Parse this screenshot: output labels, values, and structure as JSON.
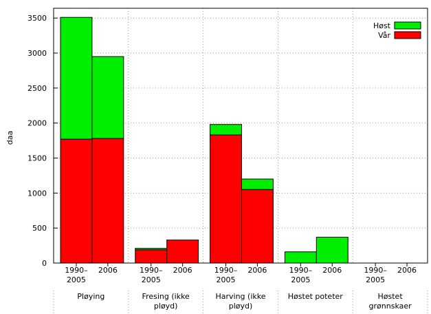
{
  "chart_data": {
    "type": "stacked_bar",
    "y_label": "daa",
    "categories": [
      "1990–\n2005",
      "2006",
      "1990–\n2005",
      "2006",
      "1990–\n2005",
      "2006",
      "1990–\n2005",
      "2006",
      "1990–\n2005",
      "2006"
    ],
    "groups": [
      "Pløying",
      "Fresing (ikke\npløyd)",
      "Harving (ikke\npløyd)",
      "Høstet poteter",
      "Høstet\ngrønnskaer"
    ],
    "series": [
      {
        "name": "Vår",
        "color": "#ff0000",
        "values": [
          1770,
          1780,
          190,
          330,
          1830,
          1050,
          0,
          0,
          0,
          0
        ]
      },
      {
        "name": "Høst",
        "color": "#00ee00",
        "values": [
          1740,
          1170,
          20,
          0,
          150,
          150,
          160,
          370,
          0,
          0
        ]
      }
    ],
    "ylim": [
      0,
      3640
    ],
    "yticks": [
      0,
      500,
      1000,
      1500,
      2000,
      2500,
      3000,
      3500
    ],
    "grid": true,
    "legend": "top-right"
  }
}
